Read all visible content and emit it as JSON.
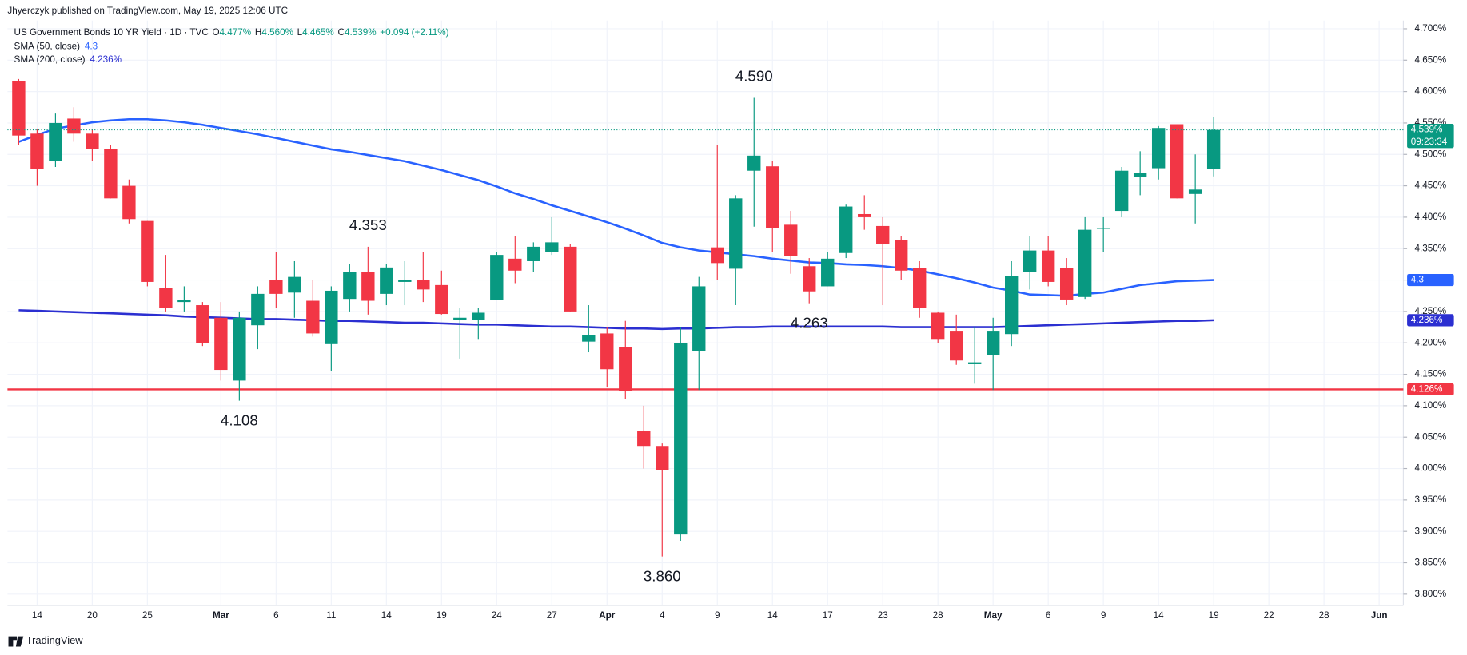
{
  "chart_data": {
    "type": "candlestick",
    "publisher": "Jhyerczyk published on TradingView.com, May 19, 2025 12:06 UTC",
    "title": "US Government Bonds 10 YR Yield · 1D · TVC",
    "ohlc_legend": [
      {
        "key": "O",
        "label": "4.477%"
      },
      {
        "key": "H",
        "label": "4.560%"
      },
      {
        "key": "L",
        "label": "4.465%"
      },
      {
        "key": "C",
        "label": "4.539%"
      }
    ],
    "change_label": "+0.094 (+2.11%)",
    "brand": "TradingView",
    "categories": [
      null,
      "14",
      null,
      null,
      "20",
      null,
      null,
      "25",
      null,
      null,
      null,
      "Mar",
      null,
      null,
      "6",
      null,
      null,
      "11",
      null,
      null,
      "14",
      null,
      null,
      "19",
      null,
      null,
      "24",
      null,
      null,
      "27",
      null,
      null,
      "Apr",
      null,
      null,
      "4",
      null,
      null,
      "9",
      null,
      null,
      "14",
      null,
      null,
      "17",
      null,
      null,
      "23",
      null,
      null,
      "28",
      null,
      null,
      "May",
      null,
      null,
      "6",
      null,
      null,
      "9",
      null,
      null,
      "14",
      null,
      null,
      "19",
      null,
      null,
      "22",
      null,
      null,
      "28",
      null,
      null,
      "Jun"
    ],
    "ohlc": {
      "open": [
        4.617,
        4.533,
        4.49,
        4.557,
        4.533,
        4.508,
        4.45,
        4.394,
        4.288,
        4.265,
        4.26,
        4.24,
        4.14,
        4.228,
        4.3,
        4.28,
        4.267,
        4.198,
        4.27,
        4.313,
        4.278,
        4.297,
        4.3,
        4.292,
        4.237,
        4.236,
        4.268,
        4.334,
        4.33,
        4.344,
        4.353,
        4.202,
        4.215,
        4.193,
        4.06,
        4.036,
        3.895,
        4.187,
        4.352,
        4.318,
        4.474,
        4.481,
        4.388,
        4.322,
        4.29,
        4.343,
        4.405,
        4.386,
        4.364,
        4.319,
        4.248,
        4.218,
        4.166,
        4.18,
        4.214,
        4.313,
        4.347,
        4.319,
        4.273,
        4.382,
        4.41,
        4.464,
        4.478,
        4.548,
        4.437,
        4.477,
        null,
        null,
        null,
        null,
        null,
        null,
        null,
        null,
        null
      ],
      "high": [
        4.62,
        4.54,
        4.565,
        4.575,
        4.54,
        4.515,
        4.46,
        4.394,
        4.34,
        4.29,
        4.265,
        4.265,
        4.25,
        4.29,
        4.345,
        4.33,
        4.3,
        4.29,
        4.325,
        4.353,
        4.325,
        4.33,
        4.345,
        4.315,
        4.255,
        4.255,
        4.345,
        4.37,
        4.36,
        4.4,
        4.357,
        4.26,
        4.225,
        4.235,
        4.1,
        4.04,
        4.225,
        4.305,
        4.515,
        4.435,
        4.59,
        4.49,
        4.41,
        4.335,
        4.345,
        4.42,
        4.435,
        4.4,
        4.37,
        4.33,
        4.25,
        4.245,
        4.225,
        4.24,
        4.33,
        4.37,
        4.37,
        4.335,
        4.4,
        4.4,
        4.48,
        4.505,
        4.545,
        4.548,
        4.5,
        4.56,
        null,
        null,
        null,
        null,
        null,
        null,
        null,
        null,
        null
      ],
      "low": [
        4.515,
        4.45,
        4.48,
        4.52,
        4.49,
        4.43,
        4.39,
        4.29,
        4.25,
        4.25,
        4.195,
        4.14,
        4.108,
        4.19,
        4.255,
        4.24,
        4.21,
        4.155,
        4.25,
        4.245,
        4.26,
        4.26,
        4.265,
        4.245,
        4.175,
        4.205,
        4.268,
        4.295,
        4.313,
        4.34,
        4.25,
        4.185,
        4.13,
        4.11,
        4.0,
        3.86,
        3.885,
        4.125,
        4.3,
        4.26,
        4.385,
        4.345,
        4.31,
        4.263,
        4.29,
        4.335,
        4.38,
        4.26,
        4.3,
        4.24,
        4.2,
        4.165,
        4.135,
        4.125,
        4.195,
        4.285,
        4.29,
        4.26,
        4.27,
        4.345,
        4.4,
        4.435,
        4.46,
        4.43,
        4.39,
        4.465,
        null,
        null,
        null,
        null,
        null,
        null,
        null,
        null,
        null
      ],
      "close": [
        4.53,
        4.477,
        4.55,
        4.533,
        4.508,
        4.43,
        4.397,
        4.297,
        4.255,
        4.268,
        4.2,
        4.157,
        4.24,
        4.278,
        4.278,
        4.305,
        4.215,
        4.283,
        4.313,
        4.267,
        4.32,
        4.3,
        4.285,
        4.246,
        4.24,
        4.248,
        4.34,
        4.315,
        4.353,
        4.36,
        4.25,
        4.212,
        4.158,
        4.124,
        4.036,
        3.998,
        4.2,
        4.29,
        4.327,
        4.43,
        4.498,
        4.383,
        4.338,
        4.282,
        4.334,
        4.417,
        4.4,
        4.357,
        4.315,
        4.255,
        4.205,
        4.172,
        4.169,
        4.218,
        4.307,
        4.347,
        4.297,
        4.269,
        4.38,
        4.383,
        4.474,
        4.471,
        4.542,
        4.43,
        4.444,
        4.539,
        null,
        null,
        null,
        null,
        null,
        null,
        null,
        null,
        null
      ]
    },
    "up_color": "#089981",
    "down_color": "#f23645",
    "last_price_label": "4.539%",
    "countdown": "09:23:34",
    "series": [
      {
        "name": "SMA (50, close)",
        "color": "#2962ff",
        "last_label": "4.3",
        "values": [
          4.52,
          4.531,
          4.541,
          4.546,
          4.551,
          4.554,
          4.556,
          4.556,
          4.554,
          4.551,
          4.547,
          4.542,
          4.537,
          4.532,
          4.526,
          4.52,
          4.514,
          4.508,
          4.504,
          4.499,
          4.494,
          4.489,
          4.482,
          4.475,
          4.467,
          4.459,
          4.449,
          4.438,
          4.429,
          4.419,
          4.41,
          4.401,
          4.392,
          4.382,
          4.371,
          4.359,
          4.352,
          4.347,
          4.344,
          4.341,
          4.338,
          4.334,
          4.331,
          4.328,
          4.327,
          4.325,
          4.324,
          4.322,
          4.319,
          4.315,
          4.309,
          4.303,
          4.296,
          4.288,
          4.283,
          4.277,
          4.276,
          4.275,
          4.278,
          4.28,
          4.286,
          4.292,
          4.295,
          4.298,
          4.299,
          4.3,
          null,
          null,
          null,
          null,
          null,
          null,
          null,
          null,
          null
        ]
      },
      {
        "name": "SMA (200, close)",
        "color": "#2b2fd1",
        "last_label": "4.236%",
        "values": [
          4.252,
          4.251,
          4.25,
          4.249,
          4.248,
          4.247,
          4.246,
          4.245,
          4.244,
          4.242,
          4.241,
          4.24,
          4.239,
          4.238,
          4.238,
          4.237,
          4.236,
          4.235,
          4.235,
          4.234,
          4.233,
          4.232,
          4.232,
          4.231,
          4.23,
          4.229,
          4.229,
          4.228,
          4.227,
          4.226,
          4.226,
          4.225,
          4.224,
          4.223,
          4.223,
          4.222,
          4.223,
          4.223,
          4.224,
          4.225,
          4.225,
          4.226,
          4.226,
          4.226,
          4.226,
          4.226,
          4.226,
          4.226,
          4.225,
          4.225,
          4.225,
          4.225,
          4.225,
          4.225,
          4.226,
          4.227,
          4.228,
          4.229,
          4.23,
          4.231,
          4.232,
          4.233,
          4.234,
          4.235,
          4.235,
          4.236,
          null,
          null,
          null,
          null,
          null,
          null,
          null,
          null,
          null
        ]
      }
    ],
    "hlines": [
      {
        "value": 4.126,
        "label": "4.126%",
        "color": "#f23645"
      }
    ],
    "annotations": [
      {
        "label": "4.590",
        "value": 4.59
      },
      {
        "label": "4.353",
        "value": 4.353
      },
      {
        "label": "4.108",
        "value": 4.108
      },
      {
        "label": "3.860",
        "value": 3.86
      },
      {
        "label": "4.263",
        "value": 4.263
      }
    ],
    "ylim": [
      3.782,
      4.713
    ],
    "yticks": [
      {
        "value": 4.7,
        "label": "4.700%"
      },
      {
        "value": 4.65,
        "label": "4.650%"
      },
      {
        "value": 4.6,
        "label": "4.600%"
      },
      {
        "value": 4.55,
        "label": "4.550%"
      },
      {
        "value": 4.5,
        "label": "4.500%"
      },
      {
        "value": 4.45,
        "label": "4.450%"
      },
      {
        "value": 4.4,
        "label": "4.400%"
      },
      {
        "value": 4.35,
        "label": "4.350%"
      },
      {
        "value": 4.3,
        "label": "4.300%"
      },
      {
        "value": 4.25,
        "label": "4.250%"
      },
      {
        "value": 4.2,
        "label": "4.200%"
      },
      {
        "value": 4.15,
        "label": "4.150%"
      },
      {
        "value": 4.1,
        "label": "4.100%"
      },
      {
        "value": 4.05,
        "label": "4.050%"
      },
      {
        "value": 4.0,
        "label": "4.000%"
      },
      {
        "value": 3.95,
        "label": "3.950%"
      },
      {
        "value": 3.9,
        "label": "3.900%"
      },
      {
        "value": 3.85,
        "label": "3.850%"
      },
      {
        "value": 3.8,
        "label": "3.800%"
      }
    ],
    "grid": true
  }
}
